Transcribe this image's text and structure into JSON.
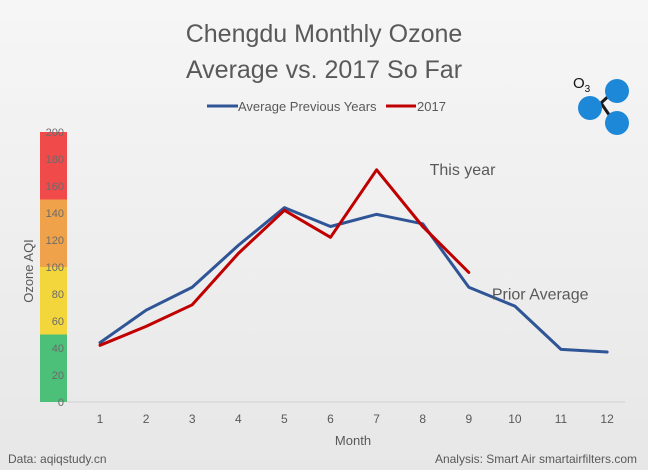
{
  "chart_data": {
    "type": "line",
    "title_lines": [
      "Chengdu Monthly Ozone",
      "Average vs. 2017 So Far"
    ],
    "xlabel": "Month",
    "ylabel": "Ozone AQI",
    "categories": [
      1,
      2,
      3,
      4,
      5,
      6,
      7,
      8,
      9,
      10,
      11,
      12
    ],
    "ylim": [
      0,
      200
    ],
    "yticks": [
      0,
      20,
      40,
      60,
      80,
      100,
      120,
      140,
      160,
      180,
      200
    ],
    "grid": false,
    "legend_position": "top",
    "series": [
      {
        "name": "Average Previous Years",
        "color": "#2f5597",
        "values": [
          44,
          68,
          85,
          116,
          144,
          130,
          139,
          132,
          85,
          71,
          39,
          37
        ]
      },
      {
        "name": "2017",
        "color": "#c00000",
        "values": [
          42,
          56,
          72,
          110,
          142,
          122,
          172,
          130,
          96,
          null,
          null,
          null
        ]
      }
    ],
    "aqi_bands": [
      {
        "from": 0,
        "to": 50,
        "color": "#4cbf78"
      },
      {
        "from": 50,
        "to": 100,
        "color": "#f3d53c"
      },
      {
        "from": 100,
        "to": 150,
        "color": "#f0a24a"
      },
      {
        "from": 150,
        "to": 200,
        "color": "#f04a4a"
      }
    ],
    "annotations": [
      {
        "text": "This year",
        "x": 8.15,
        "y": 168
      },
      {
        "text": "Prior Average",
        "x": 9.5,
        "y": 76
      }
    ],
    "sources": {
      "left": "Data: aqiqstudy.cn",
      "right": "Analysis: Smart Air smartairfilters.com"
    },
    "molecule_label": "O",
    "molecule_subscript": "3",
    "molecule_color": "#1e88d8"
  }
}
